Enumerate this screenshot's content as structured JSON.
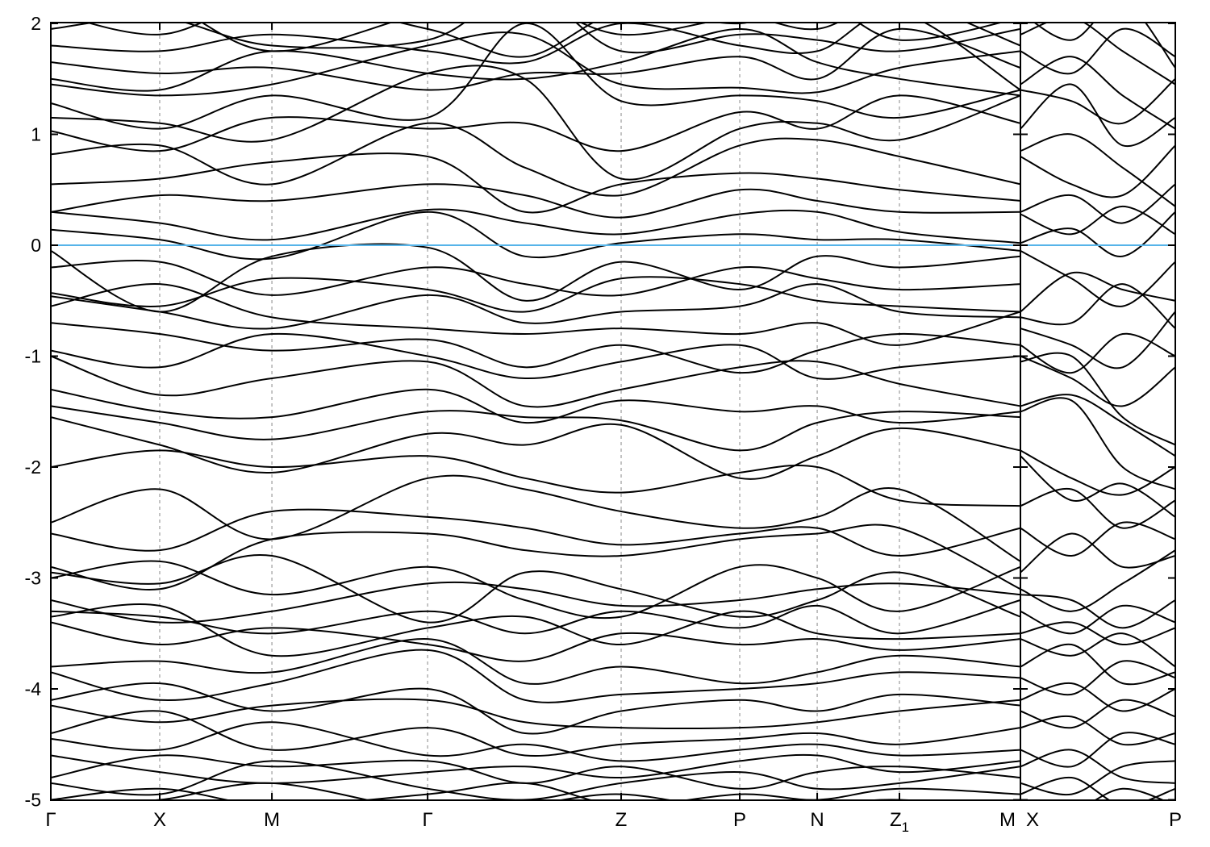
{
  "chart_data": {
    "type": "line",
    "subtype": "electronic-band-structure",
    "title": "",
    "xlabel": "",
    "ylabel": "",
    "ylim": [
      -5,
      2
    ],
    "yticks": [
      2,
      1,
      0,
      -1,
      -2,
      -3,
      -4,
      -5
    ],
    "grid": "vertical-dotted-at-k-points",
    "legend": "none",
    "fermi_level": 0,
    "colors": {
      "band": "#000000",
      "fermi_line": "#56b4e9",
      "frame": "#000000",
      "gridline": "#888888",
      "background": "#ffffff"
    },
    "panels": [
      {
        "name": "main-panel",
        "kpath_labels": [
          "Γ",
          "X",
          "M",
          "Γ",
          "Z",
          "P",
          "N",
          "Z_1",
          "M"
        ],
        "kpath_positions": [
          0,
          0.1123,
          0.228,
          0.3886,
          0.5882,
          0.7105,
          0.7904,
          0.8752,
          1.0
        ],
        "station_positions": [
          0,
          0.1123,
          0.228,
          0.3886,
          0.489,
          0.5882,
          0.7105,
          0.7904,
          0.8752,
          1.0
        ],
        "bands": [
          [
            2.3,
            2.2,
            1.75,
            2.1,
            2.2,
            1.9,
            2.05,
            1.95,
            2.2,
            1.8
          ],
          [
            2.1,
            1.9,
            2.2,
            1.95,
            1.7,
            2.1,
            2.0,
            2.2,
            1.85,
            2.05
          ],
          [
            1.95,
            2.05,
            1.8,
            1.85,
            2.3,
            1.75,
            1.9,
            1.85,
            1.75,
            1.95
          ],
          [
            1.8,
            1.75,
            1.9,
            1.75,
            1.65,
            2.0,
            1.8,
            1.75,
            2.1,
            1.4
          ],
          [
            1.65,
            1.55,
            1.6,
            1.4,
            1.55,
            1.55,
            1.7,
            1.5,
            1.95,
            1.6
          ],
          [
            1.5,
            1.4,
            1.75,
            1.55,
            1.5,
            1.65,
            1.95,
            1.65,
            1.5,
            1.35
          ],
          [
            1.45,
            1.35,
            1.45,
            1.8,
            1.9,
            1.45,
            1.42,
            1.38,
            1.6,
            1.75
          ],
          [
            1.28,
            1.05,
            1.35,
            1.15,
            2.0,
            1.3,
            1.35,
            1.3,
            1.15,
            1.4
          ],
          [
            1.15,
            1.1,
            0.95,
            1.55,
            1.5,
            0.6,
            1.05,
            1.1,
            0.95,
            1.35
          ],
          [
            1.03,
            0.85,
            1.15,
            1.05,
            1.1,
            0.85,
            1.2,
            1.05,
            1.35,
            1.1
          ],
          [
            0.82,
            0.9,
            0.55,
            1.1,
            0.7,
            0.45,
            0.9,
            0.95,
            0.8,
            0.55
          ],
          [
            0.55,
            0.6,
            0.75,
            0.8,
            0.3,
            0.55,
            0.65,
            0.6,
            0.5,
            0.4
          ],
          [
            0.3,
            0.45,
            0.4,
            0.55,
            0.45,
            0.25,
            0.5,
            0.4,
            0.3,
            0.3
          ],
          [
            0.3,
            0.2,
            0.05,
            0.32,
            0.2,
            0.1,
            0.28,
            0.3,
            0.12,
            0.02
          ],
          [
            0.14,
            0.05,
            -0.12,
            0.3,
            -0.1,
            0.02,
            0.1,
            0.05,
            0.05,
            -0.05
          ],
          [
            -0.05,
            -0.6,
            -0.1,
            -0.02,
            -0.5,
            -0.15,
            -0.4,
            -0.1,
            -0.2,
            -0.1
          ],
          [
            -0.2,
            -0.15,
            -0.45,
            -0.2,
            -0.35,
            -0.45,
            -0.2,
            -0.3,
            -0.4,
            -0.35
          ],
          [
            -0.43,
            -0.55,
            -0.3,
            -0.4,
            -0.6,
            -0.3,
            -0.35,
            -0.5,
            -0.55,
            -0.6
          ],
          [
            -0.46,
            -0.6,
            -0.75,
            -0.45,
            -0.7,
            -0.6,
            -0.55,
            -0.35,
            -0.6,
            -0.65
          ],
          [
            -0.55,
            -0.35,
            -0.65,
            -0.75,
            -0.8,
            -0.75,
            -0.8,
            -0.7,
            -0.9,
            -0.6
          ],
          [
            -0.7,
            -0.8,
            -0.95,
            -0.85,
            -1.1,
            -0.9,
            -1.15,
            -0.95,
            -0.8,
            -0.9
          ],
          [
            -0.95,
            -1.1,
            -0.8,
            -1.0,
            -1.2,
            -1.05,
            -0.9,
            -1.2,
            -1.1,
            -1.0
          ],
          [
            -1.0,
            -1.35,
            -1.2,
            -1.05,
            -1.45,
            -1.3,
            -1.1,
            -1.05,
            -1.25,
            -1.45
          ],
          [
            -1.3,
            -1.5,
            -1.55,
            -1.3,
            -1.6,
            -1.4,
            -1.5,
            -1.45,
            -1.6,
            -1.5
          ],
          [
            -1.45,
            -1.6,
            -1.75,
            -1.5,
            -1.55,
            -1.58,
            -1.85,
            -1.6,
            -1.5,
            -1.55
          ],
          [
            -1.55,
            -1.8,
            -2.05,
            -1.7,
            -1.8,
            -1.62,
            -2.1,
            -1.9,
            -1.65,
            -1.85
          ],
          [
            -2.0,
            -1.85,
            -2.0,
            -1.9,
            -2.1,
            -2.23,
            -2.05,
            -2.0,
            -2.3,
            -2.35
          ],
          [
            -2.5,
            -2.2,
            -2.65,
            -2.1,
            -2.2,
            -2.4,
            -2.55,
            -2.45,
            -2.2,
            -2.85
          ],
          [
            -2.6,
            -2.75,
            -2.4,
            -2.45,
            -2.55,
            -2.7,
            -2.6,
            -2.55,
            -2.8,
            -2.55
          ],
          [
            -2.9,
            -3.1,
            -2.65,
            -2.6,
            -2.75,
            -2.8,
            -2.65,
            -2.6,
            -2.55,
            -3.1
          ],
          [
            -2.95,
            -3.05,
            -2.8,
            -3.4,
            -2.95,
            -3.1,
            -3.35,
            -3.2,
            -2.95,
            -3.35
          ],
          [
            -3.0,
            -2.85,
            -3.15,
            -2.9,
            -3.2,
            -3.35,
            -2.9,
            -3.0,
            -3.3,
            -2.9
          ],
          [
            -3.2,
            -3.4,
            -3.3,
            -3.05,
            -3.1,
            -3.25,
            -3.2,
            -3.1,
            -3.05,
            -3.15
          ],
          [
            -3.3,
            -3.35,
            -3.5,
            -3.3,
            -3.5,
            -3.3,
            -3.45,
            -3.25,
            -3.5,
            -3.2
          ],
          [
            -3.35,
            -3.25,
            -3.7,
            -3.45,
            -3.35,
            -3.6,
            -3.3,
            -3.5,
            -3.55,
            -3.5
          ],
          [
            -3.4,
            -3.6,
            -3.45,
            -3.6,
            -3.75,
            -3.5,
            -3.6,
            -3.55,
            -3.65,
            -3.55
          ],
          [
            -3.8,
            -3.75,
            -3.85,
            -3.55,
            -3.95,
            -3.8,
            -3.95,
            -3.85,
            -3.7,
            -3.8
          ],
          [
            -3.85,
            -4.1,
            -3.95,
            -3.65,
            -4.1,
            -4.05,
            -4.0,
            -3.95,
            -3.85,
            -3.9
          ],
          [
            -4.1,
            -3.95,
            -4.2,
            -4.0,
            -4.4,
            -4.2,
            -4.1,
            -4.2,
            -4.05,
            -4.15
          ],
          [
            -4.15,
            -4.3,
            -4.15,
            -4.1,
            -4.3,
            -4.35,
            -4.35,
            -4.3,
            -4.2,
            -4.1
          ],
          [
            -4.4,
            -4.2,
            -4.55,
            -4.35,
            -4.6,
            -4.5,
            -4.45,
            -4.4,
            -4.5,
            -4.35
          ],
          [
            -4.45,
            -4.55,
            -4.3,
            -4.6,
            -4.5,
            -4.65,
            -4.55,
            -4.5,
            -4.6,
            -4.55
          ],
          [
            -4.6,
            -4.75,
            -4.85,
            -4.75,
            -4.7,
            -4.8,
            -4.65,
            -4.6,
            -4.75,
            -4.65
          ],
          [
            -4.8,
            -4.6,
            -4.7,
            -4.65,
            -4.85,
            -4.7,
            -4.9,
            -4.75,
            -4.7,
            -4.8
          ],
          [
            -4.85,
            -4.95,
            -4.65,
            -4.9,
            -5.0,
            -4.85,
            -4.75,
            -4.9,
            -4.85,
            -4.7
          ],
          [
            -5.0,
            -4.9,
            -5.05,
            -4.95,
            -4.85,
            -5.05,
            -4.95,
            -5.0,
            -4.9,
            -4.95
          ],
          [
            -5.05,
            -5.0,
            -4.85,
            -5.1,
            -5.05,
            -4.95,
            -5.1,
            -5.05,
            -5.0,
            -5.1
          ]
        ]
      },
      {
        "name": "right-panel",
        "kpath_labels": [
          "X",
          "P"
        ],
        "kpath_positions": [
          0,
          1.0
        ],
        "station_positions": [
          0,
          0.33,
          0.66,
          1.0
        ],
        "bands": [
          [
            2.1,
            1.85,
            2.2,
            1.6
          ],
          [
            1.9,
            2.05,
            1.75,
            1.45
          ],
          [
            1.75,
            1.55,
            1.95,
            1.7
          ],
          [
            1.45,
            1.7,
            1.35,
            1.05
          ],
          [
            1.4,
            1.3,
            1.1,
            1.5
          ],
          [
            1.05,
            1.45,
            0.9,
            1.15
          ],
          [
            0.85,
            1.0,
            0.7,
            0.35
          ],
          [
            0.8,
            0.55,
            0.45,
            0.9
          ],
          [
            0.3,
            0.45,
            0.2,
            0.55
          ],
          [
            0.28,
            0.1,
            0.35,
            0.1
          ],
          [
            0.02,
            0.15,
            -0.1,
            0.3
          ],
          [
            -0.05,
            -0.3,
            -0.55,
            -0.15
          ],
          [
            -0.6,
            -0.25,
            -0.4,
            -0.5
          ],
          [
            -0.65,
            -0.7,
            -0.35,
            -0.75
          ],
          [
            -0.75,
            -0.9,
            -1.1,
            -0.6
          ],
          [
            -0.9,
            -1.15,
            -0.8,
            -1.0
          ],
          [
            -1.0,
            -1.2,
            -1.45,
            -1.1
          ],
          [
            -1.05,
            -1.0,
            -1.55,
            -1.8
          ],
          [
            -1.45,
            -1.35,
            -1.6,
            -1.9
          ],
          [
            -1.5,
            -1.4,
            -2.0,
            -2.2
          ],
          [
            -1.85,
            -2.1,
            -2.25,
            -2.0
          ],
          [
            -1.9,
            -2.3,
            -2.15,
            -2.45
          ],
          [
            -2.35,
            -2.2,
            -2.55,
            -2.3
          ],
          [
            -2.55,
            -2.8,
            -2.5,
            -2.65
          ],
          [
            -2.95,
            -2.6,
            -2.9,
            -2.8
          ],
          [
            -3.1,
            -3.3,
            -3.05,
            -2.75
          ],
          [
            -3.15,
            -3.2,
            -3.45,
            -3.2
          ],
          [
            -3.3,
            -3.5,
            -3.25,
            -3.4
          ],
          [
            -3.5,
            -3.4,
            -3.6,
            -3.45
          ],
          [
            -3.55,
            -3.7,
            -3.5,
            -3.8
          ],
          [
            -3.8,
            -3.6,
            -3.95,
            -3.85
          ],
          [
            -3.9,
            -4.05,
            -3.75,
            -3.9
          ],
          [
            -4.1,
            -3.95,
            -4.2,
            -4.0
          ],
          [
            -4.2,
            -4.35,
            -4.1,
            -4.25
          ],
          [
            -4.35,
            -4.25,
            -4.5,
            -4.4
          ],
          [
            -4.55,
            -4.7,
            -4.4,
            -4.5
          ],
          [
            -4.7,
            -4.55,
            -4.8,
            -4.85
          ],
          [
            -4.85,
            -4.95,
            -4.7,
            -4.65
          ],
          [
            -4.95,
            -4.8,
            -5.05,
            -4.9
          ],
          [
            -5.05,
            -5.1,
            -4.9,
            -5.05
          ]
        ]
      }
    ]
  }
}
